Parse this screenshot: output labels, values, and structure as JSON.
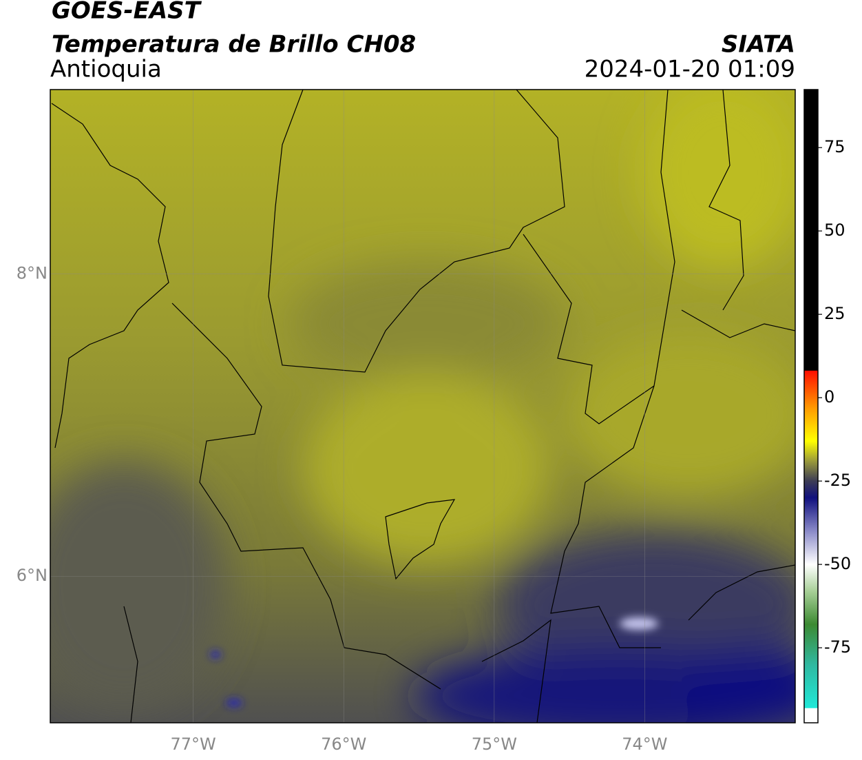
{
  "chart_data": {
    "type": "map",
    "title": "GOES-EAST",
    "subtitle": "Temperatura de Brillo CH08",
    "region": "Antioquia",
    "source": "SIATA",
    "timestamp": "2024-01-20 01:09",
    "xlim": [
      -77.95,
      -73.0
    ],
    "ylim": [
      5.03,
      9.22
    ],
    "xticks": [
      {
        "value": -77,
        "label": "77°W"
      },
      {
        "value": -76,
        "label": "76°W"
      },
      {
        "value": -75,
        "label": "75°W"
      },
      {
        "value": -74,
        "label": "74°W"
      }
    ],
    "yticks": [
      {
        "value": 6,
        "label": "6°N"
      },
      {
        "value": 8,
        "label": "8°N"
      }
    ],
    "grid": true,
    "colorbar": {
      "lim": [
        -97.5,
        92.4
      ],
      "ticks": [
        -75,
        -50,
        -25,
        0,
        25,
        50,
        75
      ],
      "stops": [
        {
          "value": -97.5,
          "color": "#ffffff"
        },
        {
          "value": -93.2,
          "color": "#ffffff"
        },
        {
          "value": -93,
          "color": "#20e8d8"
        },
        {
          "value": -80,
          "color": "#30b8a0"
        },
        {
          "value": -68,
          "color": "#3c8a32"
        },
        {
          "value": -58,
          "color": "#a8d098"
        },
        {
          "value": -50,
          "color": "#ffffff"
        },
        {
          "value": -40,
          "color": "#8a8ac8"
        },
        {
          "value": -30,
          "color": "#10107e"
        },
        {
          "value": -25,
          "color": "#3c3c55"
        },
        {
          "value": -19,
          "color": "#9a9a3a"
        },
        {
          "value": -13,
          "color": "#ffff00"
        },
        {
          "value": -3,
          "color": "#ff9900"
        },
        {
          "value": 8,
          "color": "#ff1000"
        },
        {
          "value": 8.2,
          "color": "#000000"
        },
        {
          "value": 92.4,
          "color": "#000000"
        }
      ]
    }
  }
}
